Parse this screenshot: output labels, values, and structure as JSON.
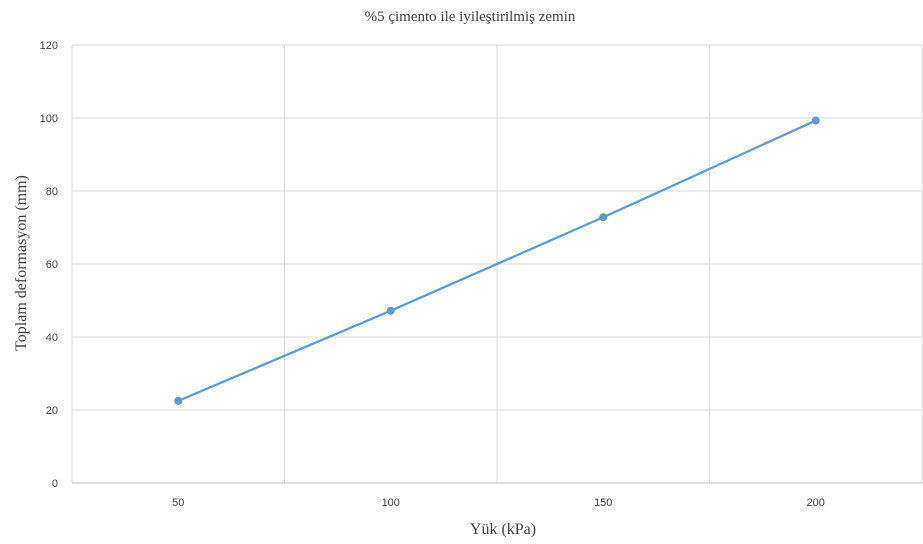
{
  "chart_data": {
    "type": "line",
    "title": "%5 çimento ile iyileştirilmiş zemin",
    "xlabel": "Yük (kPa)",
    "ylabel": "Toplam deformasyon (mm)",
    "categories": [
      "50",
      "100",
      "150",
      "200"
    ],
    "series": [
      {
        "values": [
          22.5,
          47.2,
          72.8,
          99.3
        ],
        "color": "#5b9bd5"
      }
    ],
    "ylim": [
      0,
      120
    ],
    "yticks": [
      "0",
      "20",
      "40",
      "60",
      "80",
      "100",
      "120"
    ],
    "grid": true,
    "legend": "none"
  }
}
